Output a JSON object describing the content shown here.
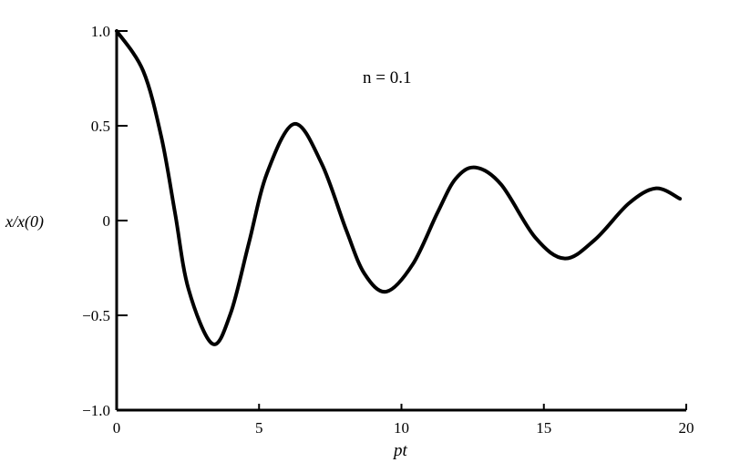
{
  "chart_data": {
    "type": "line",
    "title": "",
    "annotation": "n = 0.1",
    "xlabel": "pt",
    "ylabel": "x/x(0)",
    "xlim": [
      0,
      20
    ],
    "ylim": [
      -1.0,
      1.0
    ],
    "xticks": [
      "0",
      "5",
      "10",
      "15",
      "20"
    ],
    "yticks": [
      "1.0",
      "0.5",
      "0",
      "−0.5",
      "−1.0"
    ],
    "grid": false,
    "line_color": "#000000",
    "series": [
      {
        "x": [
          0,
          0.93,
          1.57,
          2.05,
          2.52,
          3.36,
          4.0,
          4.64,
          5.28,
          6.24,
          7.2,
          8.06,
          8.7,
          9.47,
          10.4,
          11.26,
          11.9,
          12.6,
          13.5,
          14.7,
          15.74,
          16.8,
          17.98,
          18.94,
          19.78
        ],
        "y": [
          1.0,
          0.79,
          0.44,
          0.04,
          -0.36,
          -0.65,
          -0.49,
          -0.12,
          0.25,
          0.51,
          0.3,
          -0.05,
          -0.28,
          -0.375,
          -0.23,
          0.04,
          0.22,
          0.28,
          0.19,
          -0.09,
          -0.2,
          -0.1,
          0.09,
          0.17,
          0.115
        ]
      }
    ]
  }
}
